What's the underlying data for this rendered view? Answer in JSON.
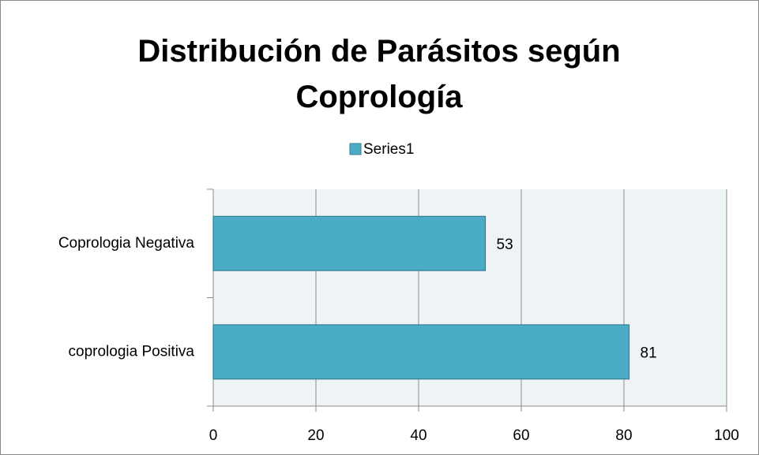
{
  "chart_data": {
    "type": "bar",
    "orientation": "horizontal",
    "title": "Distribución de Parásitos según Coprología",
    "categories": [
      "Coprologia Negativa",
      "coprologia Positiva"
    ],
    "series": [
      {
        "name": "Series1",
        "color": "#4bacc6",
        "values": [
          53,
          81
        ]
      }
    ],
    "xlim": [
      0,
      100
    ],
    "xticks": [
      0,
      20,
      40,
      60,
      80,
      100
    ],
    "grid": true,
    "legend": "top"
  }
}
